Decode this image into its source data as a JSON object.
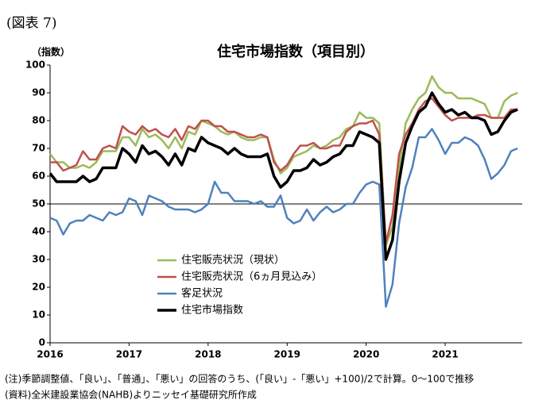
{
  "chart_data": {
    "type": "line",
    "figure_label": "(図表 7)",
    "title": "住宅市場指数（項目別）",
    "y_label": "（指数）",
    "notes": [
      "(注)季節調整値、「良い」、「普通」、「悪い」の回答のうち、(「良い」-「悪い」+100)/2で計算。0～100で推移",
      "(資料)全米建設業協会(NAHB)よりニッセイ基礎研究所作成"
    ],
    "categories": [
      "2016",
      null,
      null,
      null,
      null,
      null,
      null,
      null,
      null,
      null,
      null,
      null,
      "2017",
      null,
      null,
      null,
      null,
      null,
      null,
      null,
      null,
      null,
      null,
      null,
      "2018",
      null,
      null,
      null,
      null,
      null,
      null,
      null,
      null,
      null,
      null,
      null,
      "2019",
      null,
      null,
      null,
      null,
      null,
      null,
      null,
      null,
      null,
      null,
      null,
      "2020",
      null,
      null,
      null,
      null,
      null,
      null,
      null,
      null,
      null,
      null,
      null,
      "2021",
      null,
      null,
      null,
      null,
      null,
      null,
      null,
      null,
      null,
      null,
      null
    ],
    "ylim": [
      0,
      100
    ],
    "yticks": [
      0,
      10,
      20,
      30,
      40,
      50,
      60,
      70,
      80,
      90,
      100
    ],
    "grid_lines": [
      50
    ],
    "legend": "lower-left",
    "series": [
      {
        "name": "住宅販売状況（現状）",
        "color": "#9bbb59",
        "width": 2.5,
        "values": [
          68,
          65,
          65,
          63,
          63,
          64,
          63,
          65,
          69,
          69,
          69,
          74,
          74,
          71,
          77,
          74,
          75,
          73,
          70,
          74,
          70,
          76,
          75,
          80,
          79,
          78,
          76,
          75,
          76,
          74,
          73,
          73,
          74,
          74,
          66,
          61,
          63,
          67,
          68,
          69,
          71,
          70,
          71,
          73,
          74,
          77,
          78,
          83,
          81,
          81,
          79,
          35,
          42,
          63,
          79,
          84,
          88,
          90,
          96,
          92,
          90,
          90,
          88,
          88,
          88,
          87,
          86,
          81,
          81,
          87,
          89,
          90
        ]
      },
      {
        "name": "住宅販売状況（6ヵ月見込み）",
        "color": "#c0504d",
        "width": 2.5,
        "values": [
          65,
          65,
          62,
          63,
          64,
          69,
          66,
          66,
          70,
          71,
          70,
          78,
          76,
          75,
          78,
          76,
          77,
          75,
          74,
          77,
          73,
          78,
          77,
          80,
          80,
          78,
          78,
          76,
          76,
          75,
          74,
          74,
          75,
          74,
          65,
          62,
          64,
          68,
          71,
          71,
          72,
          70,
          70,
          71,
          71,
          76,
          78,
          79,
          79,
          80,
          75,
          36,
          46,
          68,
          75,
          79,
          84,
          87,
          88,
          85,
          82,
          80,
          81,
          81,
          81,
          82,
          82,
          81,
          81,
          81,
          84,
          84
        ]
      },
      {
        "name": "客足状況",
        "color": "#4f81bd",
        "width": 2.5,
        "values": [
          45,
          44,
          39,
          43,
          44,
          44,
          46,
          45,
          44,
          47,
          46,
          47,
          52,
          51,
          46,
          53,
          52,
          51,
          49,
          48,
          48,
          48,
          47,
          48,
          50,
          58,
          54,
          54,
          51,
          51,
          51,
          50,
          51,
          49,
          49,
          53,
          45,
          43,
          44,
          48,
          44,
          47,
          49,
          47,
          48,
          50,
          50,
          54,
          57,
          58,
          57,
          13,
          21,
          43,
          56,
          63,
          74,
          74,
          77,
          73,
          68,
          72,
          72,
          74,
          73,
          71,
          66,
          59,
          61,
          64,
          69,
          70
        ]
      },
      {
        "name": "住宅市場指数",
        "color": "#000000",
        "width": 3.5,
        "values": [
          61,
          58,
          58,
          58,
          58,
          60,
          58,
          59,
          63,
          63,
          63,
          70,
          68,
          65,
          71,
          68,
          69,
          67,
          64,
          68,
          64,
          70,
          69,
          74,
          72,
          71,
          70,
          68,
          70,
          68,
          67,
          67,
          67,
          68,
          60,
          56,
          58,
          62,
          62,
          63,
          66,
          64,
          65,
          67,
          68,
          71,
          71,
          76,
          75,
          74,
          72,
          30,
          37,
          58,
          72,
          78,
          83,
          85,
          90,
          86,
          83,
          84,
          82,
          83,
          81,
          81,
          80,
          75,
          76,
          80,
          83,
          84
        ]
      }
    ]
  }
}
